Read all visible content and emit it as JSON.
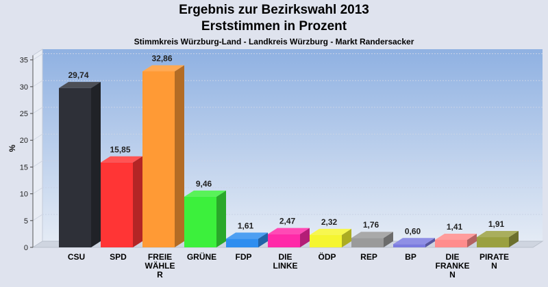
{
  "header": {
    "title": "Ergebnis zur Bezirkswahl 2013",
    "subtitle": "Erststimmen in Prozent",
    "caption": "Stimmkreis Würzburg-Land - Landkreis Würzburg - Markt Randersacker"
  },
  "chart_data": {
    "type": "bar",
    "title": "Ergebnis zur Bezirkswahl 2013",
    "subtitle": "Erststimmen in Prozent",
    "xlabel": "",
    "ylabel": "%",
    "ylim": [
      0,
      37
    ],
    "yticks": [
      0,
      5,
      10,
      15,
      20,
      25,
      30,
      35
    ],
    "grid": true,
    "categories": [
      "CSU",
      "SPD",
      "FREIE WÄHLER",
      "GRÜNE",
      "FDP",
      "DIE LINKE",
      "ÖDP",
      "REP",
      "BP",
      "DIE FRANKEN",
      "PIRATEN"
    ],
    "category_display": [
      [
        "CSU"
      ],
      [
        "SPD"
      ],
      [
        "FREIE",
        "WÄHLE",
        "R"
      ],
      [
        "GRÜNE"
      ],
      [
        "FDP"
      ],
      [
        "DIE",
        "LINKE"
      ],
      [
        "ÖDP"
      ],
      [
        "REP"
      ],
      [
        "BP"
      ],
      [
        "DIE",
        "FRANKE",
        "N"
      ],
      [
        "PIRATE",
        "N"
      ]
    ],
    "values": [
      29.74,
      15.85,
      32.86,
      9.46,
      1.61,
      2.47,
      2.32,
      1.76,
      0.6,
      1.41,
      1.91
    ],
    "value_labels": [
      "29,74",
      "15,85",
      "32,86",
      "9,46",
      "1,61",
      "2,47",
      "2,32",
      "1,76",
      "0,60",
      "1,41",
      "1,91"
    ],
    "colors": [
      "#2e3038",
      "#ff3535",
      "#ff9a35",
      "#3cf03c",
      "#2f8ef0",
      "#ff2aa8",
      "#f5f530",
      "#9a9a9a",
      "#7b7be0",
      "#ff8c8c",
      "#9aa040"
    ],
    "plot_background": [
      "#8fb1e2",
      "#e4ebf5"
    ]
  }
}
